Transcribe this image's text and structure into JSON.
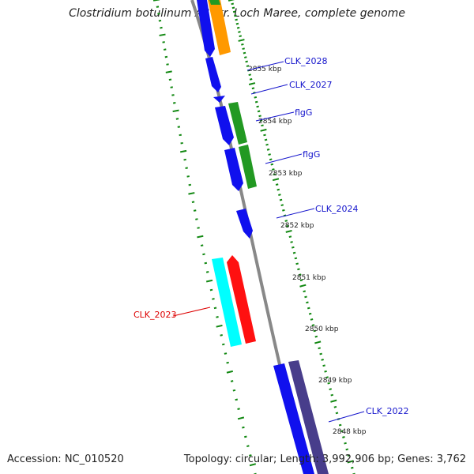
{
  "title": "Clostridium botulinum A3 str. Loch Maree, complete genome",
  "footer": {
    "accession": "Accession: NC_010520",
    "summary": "Topology: circular; Length: 3,992,906 bp; Genes: 3,762"
  },
  "colors": {
    "backbone": "#888888",
    "tick": "#118811",
    "gene_blue": "#1010ee",
    "gene_orange": "#ff9900",
    "gene_green": "#229922",
    "gene_cyan": "#00ffff",
    "gene_red": "#ff1010",
    "gene_navy": "#483d8b",
    "label_blue": "#1414cc",
    "label_red": "#dd0000"
  },
  "scale_labels": [
    {
      "text": "2855 kbp"
    },
    {
      "text": "2854 kbp"
    },
    {
      "text": "2853 kbp"
    },
    {
      "text": "2852 kbp"
    },
    {
      "text": "2851 kbp"
    },
    {
      "text": "2850 kbp"
    },
    {
      "text": "2849 kbp"
    },
    {
      "text": "2848 kbp"
    }
  ],
  "gene_labels": [
    {
      "text": "CLK_2028",
      "color": "blue"
    },
    {
      "text": "CLK_2027",
      "color": "blue"
    },
    {
      "text": "flgG",
      "color": "blue"
    },
    {
      "text": "flgG",
      "color": "blue"
    },
    {
      "text": "CLK_2024",
      "color": "blue"
    },
    {
      "text": "CLK_2023",
      "color": "red"
    },
    {
      "text": "CLK_2022",
      "color": "blue"
    }
  ]
}
